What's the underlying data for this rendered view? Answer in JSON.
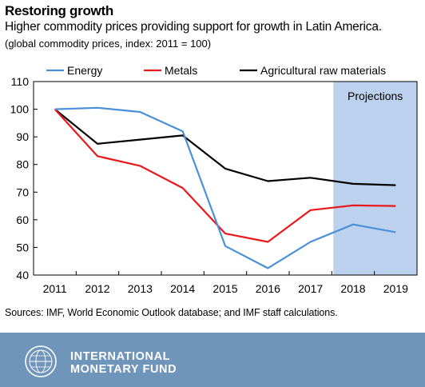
{
  "header": {
    "title": "Restoring growth",
    "subtitle": "Higher commodity prices providing support for growth in Latin America.",
    "note": "(global commodity prices, index: 2011 = 100)"
  },
  "chart_data": {
    "type": "line",
    "x": [
      "2011",
      "2012",
      "2013",
      "2014",
      "2015",
      "2016",
      "2017",
      "2018",
      "2019"
    ],
    "series": [
      {
        "name": "Energy",
        "color": "#4a90d9",
        "values": [
          100,
          100.5,
          99,
          92,
          50.5,
          42.5,
          52,
          58.3,
          55.5
        ]
      },
      {
        "name": "Metals",
        "color": "#e8191b",
        "values": [
          100,
          83,
          79.5,
          71.5,
          55,
          52,
          63.5,
          65.2,
          65
        ]
      },
      {
        "name": "Agricultural raw materials",
        "color": "#000000",
        "values": [
          100,
          87.5,
          89,
          90.5,
          78.5,
          74,
          75.2,
          73,
          72.5
        ]
      }
    ],
    "ylim": [
      40,
      110
    ],
    "yticks": [
      40,
      50,
      60,
      70,
      80,
      90,
      100,
      110
    ],
    "grid": false,
    "legend": "top",
    "projection": {
      "label": "Projections",
      "from": "2017.5",
      "to": "end",
      "color": "#bcd1ee"
    }
  },
  "source": "Sources: IMF, World Economic Outlook database; and IMF staff calculations.",
  "footer": {
    "org_line1": "INTERNATIONAL",
    "org_line2": "MONETARY FUND",
    "background": "#6f95bb",
    "logo": "imf-seal-icon"
  }
}
